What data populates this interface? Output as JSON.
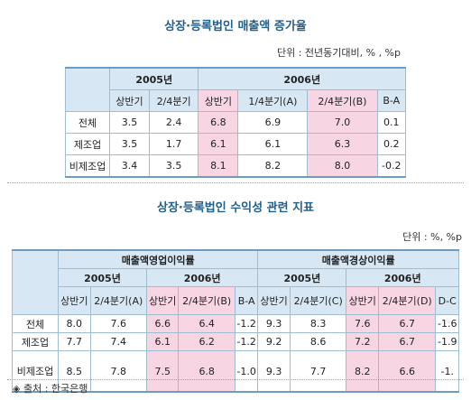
{
  "table1": {
    "title": "상장·등록법인 매출액 증가율",
    "unit": "단위 : 전년동기대비, % , %p",
    "year_2005": "2005년",
    "year_2006": "2006년",
    "col_headers": [
      "상반기",
      "2/4분기",
      "상반기",
      "1/4분기(A)",
      "2/4분기(B)",
      "B-A"
    ],
    "rows": [
      {
        "label": "전체",
        "values": [
          "3.5",
          "2.4",
          "6.8",
          "6.9",
          "7.0",
          "0.1"
        ]
      },
      {
        "label": "제조업",
        "values": [
          "3.5",
          "1.7",
          "6.1",
          "6.1",
          "6.3",
          "0.2"
        ]
      },
      {
        "label": "비제조업",
        "values": [
          "3.4",
          "3.5",
          "8.1",
          "8.2",
          "8.0",
          "-0.2"
        ]
      }
    ]
  },
  "table2": {
    "title": "상장·등록법인 수익성 관련 지표",
    "unit": "단위 : %, %p",
    "group_left": "매출액영업이익률",
    "group_right": "매출액경상이익률",
    "year_2005": "2005년",
    "year_2006": "2006년",
    "col_headers": [
      "상반기",
      "2/4분기(A)",
      "상반기",
      "2/4분기(B)",
      "B-A",
      "상반기",
      "2/4분기(C)",
      "상반기",
      "2/4분기(D)",
      "D-C"
    ],
    "rows": [
      {
        "label": "전체",
        "values": [
          "8.0",
          "7.6",
          "6.6",
          "6.4",
          "-1.2",
          "9.3",
          "8.3",
          "7.6",
          "6.7",
          "-1.6"
        ]
      },
      {
        "label": "제조업",
        "values": [
          "7.7",
          "7.4",
          "6.1",
          "6.2",
          "-1.2",
          "9.2",
          "8.6",
          "7.2",
          "6.7",
          "-1.9"
        ]
      },
      {
        "label": "비제조업",
        "values": [
          "8.5",
          "7.8",
          "7.5",
          "6.8",
          "-1.0",
          "9.3",
          "7.7",
          "8.2",
          "6.6",
          "-1."
        ]
      }
    ]
  },
  "source": "◈ 출처 : 한국은행"
}
